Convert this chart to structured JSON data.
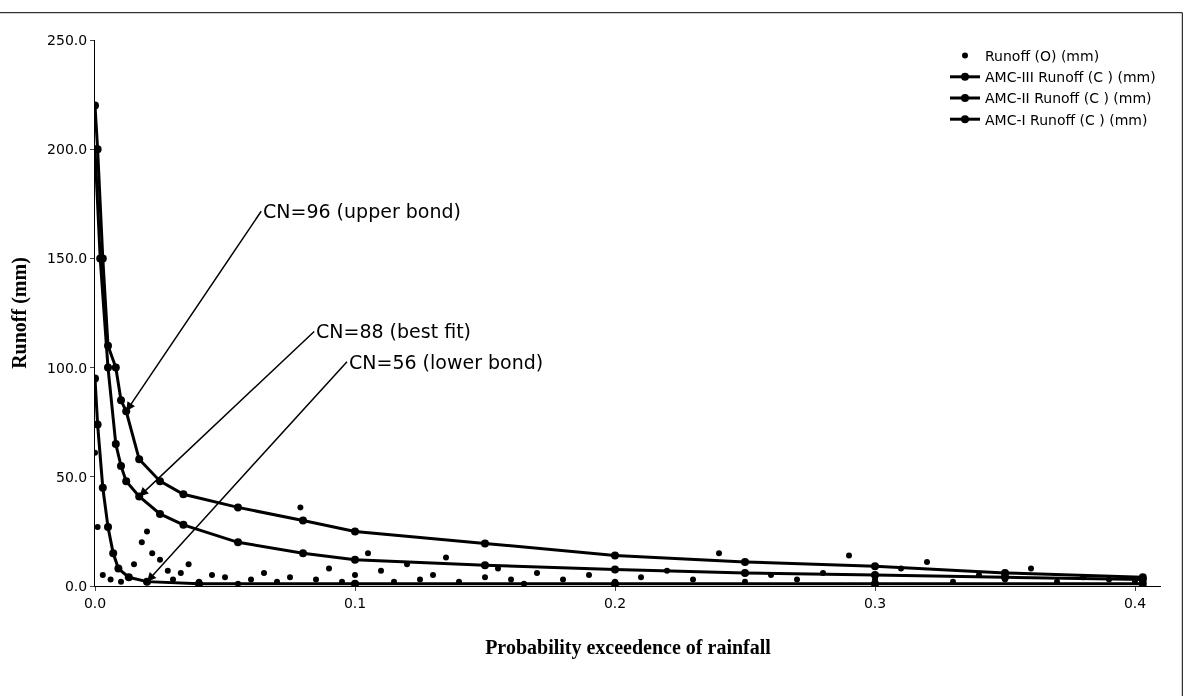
{
  "chart_data": {
    "type": "line",
    "xlabel": "Probability exceedence of rainfall",
    "ylabel": "Runoff (mm)",
    "xlim": [
      0,
      0.41
    ],
    "ylim": [
      0,
      250
    ],
    "xticks": [
      {
        "value": 0,
        "label": "0.0"
      },
      {
        "value": 0.1,
        "label": "0.1"
      },
      {
        "value": 0.2,
        "label": "0.2"
      },
      {
        "value": 0.3,
        "label": "0.3"
      },
      {
        "value": 0.4,
        "label": "0.4"
      }
    ],
    "yticks": [
      {
        "value": 0,
        "label": "0.0"
      },
      {
        "value": 50,
        "label": "50.0"
      },
      {
        "value": 100,
        "label": "100.0"
      },
      {
        "value": 150,
        "label": "150.0"
      },
      {
        "value": 200,
        "label": "200.0"
      },
      {
        "value": 250,
        "label": "250.0"
      }
    ],
    "grid": false,
    "legend": "top right",
    "marker": "circle",
    "line_style": "solid",
    "series": [
      {
        "name": "Runoff (O) (mm)",
        "type": "scatter",
        "color": "#000000",
        "x": [
          0.0,
          0.001,
          0.003,
          0.006,
          0.01,
          0.015,
          0.018,
          0.02,
          0.022,
          0.025,
          0.028,
          0.03,
          0.033,
          0.036,
          0.04,
          0.045,
          0.05,
          0.055,
          0.06,
          0.065,
          0.07,
          0.075,
          0.079,
          0.085,
          0.09,
          0.095,
          0.1,
          0.105,
          0.11,
          0.115,
          0.12,
          0.125,
          0.13,
          0.135,
          0.14,
          0.15,
          0.155,
          0.16,
          0.165,
          0.17,
          0.18,
          0.19,
          0.2,
          0.21,
          0.22,
          0.23,
          0.24,
          0.25,
          0.26,
          0.27,
          0.28,
          0.29,
          0.3,
          0.31,
          0.32,
          0.33,
          0.34,
          0.35,
          0.36,
          0.37,
          0.38,
          0.39,
          0.4
        ],
        "values": [
          61,
          27,
          5,
          3,
          2,
          10,
          20,
          25,
          15,
          12,
          7,
          3,
          6,
          10,
          2,
          5,
          4,
          1,
          3,
          6,
          2,
          4,
          36,
          3,
          8,
          2,
          5,
          15,
          7,
          2,
          10,
          3,
          5,
          13,
          2,
          4,
          8,
          3,
          1,
          6,
          3,
          5,
          2,
          4,
          7,
          3,
          15,
          2,
          5,
          3,
          6,
          14,
          3,
          8,
          11,
          2,
          5,
          3,
          8,
          2,
          4,
          3,
          2
        ]
      },
      {
        "name": "AMC-III Runoff (C ) (mm)",
        "color": "#000000",
        "x": [
          0.0,
          0.001,
          0.003,
          0.005,
          0.008,
          0.01,
          0.012,
          0.017,
          0.025,
          0.034,
          0.055,
          0.08,
          0.1,
          0.15,
          0.2,
          0.25,
          0.3,
          0.35,
          0.403
        ],
        "values": [
          220,
          200,
          150,
          110,
          100,
          85,
          80,
          58,
          48,
          42,
          36,
          30,
          25,
          19.5,
          14,
          11,
          9,
          6,
          4
        ]
      },
      {
        "name": "AMC-II Runoff (C ) (mm)",
        "color": "#000000",
        "x": [
          0.0,
          0.002,
          0.005,
          0.008,
          0.01,
          0.012,
          0.017,
          0.025,
          0.034,
          0.055,
          0.08,
          0.1,
          0.15,
          0.2,
          0.25,
          0.3,
          0.35,
          0.403
        ],
        "values": [
          200,
          150,
          100,
          65,
          55,
          48,
          41,
          33,
          28,
          20,
          15,
          12,
          9.5,
          7.6,
          6,
          5,
          4,
          3
        ]
      },
      {
        "name": "AMC-I Runoff (C ) (mm)",
        "color": "#000000",
        "x": [
          0.0,
          0.001,
          0.003,
          0.005,
          0.007,
          0.009,
          0.013,
          0.02,
          0.04,
          0.1,
          0.2,
          0.3,
          0.403
        ],
        "values": [
          95,
          74,
          45,
          27,
          15,
          8,
          4,
          2,
          1,
          1,
          1,
          1,
          1
        ]
      }
    ],
    "annotations": [
      {
        "text": "CN=96 (upper bond)",
        "x": 0.012,
        "y": 80
      },
      {
        "text": "CN=88 (best fit)",
        "x": 0.017,
        "y": 41
      },
      {
        "text": "CN=56 (lower bond)",
        "x": 0.02,
        "y": 2
      }
    ]
  }
}
